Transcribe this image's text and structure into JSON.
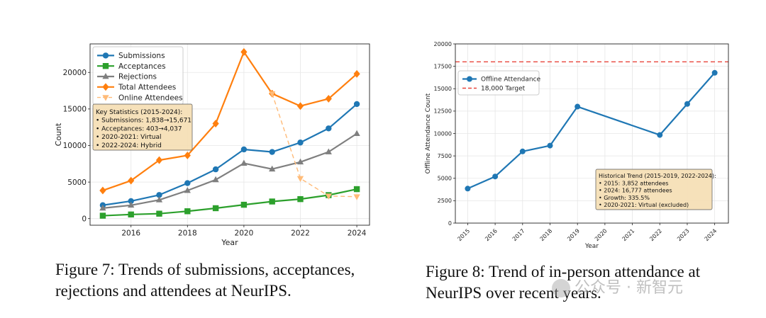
{
  "chart_data": [
    {
      "type": "line",
      "xlabel": "Year",
      "ylabel": "Count",
      "x": [
        2015,
        2016,
        2017,
        2018,
        2019,
        2020,
        2021,
        2022,
        2023,
        2024
      ],
      "xticks": [
        2016,
        2018,
        2020,
        2022,
        2024
      ],
      "yticks": [
        0,
        5000,
        10000,
        15000,
        20000
      ],
      "xlim": [
        2014.55,
        2024.45
      ],
      "ylim": [
        -900,
        23900
      ],
      "grid": true,
      "legend_position": "upper-left",
      "series": [
        {
          "name": "Submissions",
          "color": "#1f77b4",
          "marker": "circle",
          "style": "solid",
          "values": [
            1838,
            2400,
            3240,
            4856,
            6743,
            9467,
            9122,
            10411,
            12345,
            15671
          ]
        },
        {
          "name": "Acceptances",
          "color": "#2ca02c",
          "marker": "square",
          "style": "solid",
          "values": [
            403,
            569,
            679,
            1011,
            1428,
            1900,
            2344,
            2671,
            3218,
            4037
          ]
        },
        {
          "name": "Rejections",
          "color": "#7f7f7f",
          "marker": "triangle",
          "style": "solid",
          "values": [
            1435,
            1831,
            2561,
            3845,
            5315,
            7567,
            6778,
            7740,
            9127,
            11634
          ]
        },
        {
          "name": "Total Attendees",
          "color": "#ff7f0e",
          "marker": "diamond",
          "style": "solid",
          "values": [
            3852,
            5200,
            8000,
            8648,
            13000,
            22800,
            17100,
            15400,
            16400,
            19800
          ]
        },
        {
          "name": "Online Attendees",
          "color": "#ffbb78",
          "marker": "triangle-down",
          "style": "dashed",
          "values": [
            null,
            null,
            null,
            null,
            null,
            null,
            17100,
            5500,
            3100,
            3000
          ]
        }
      ],
      "stats_box": {
        "lines": [
          "Key Statistics (2015-2024):",
          "• Submissions: 1,838→15,671",
          "• Acceptances: 403→4,037",
          "• 2020-2021: Virtual",
          "• 2022-2024: Hybrid"
        ]
      },
      "caption": "Figure 7: Trends of submissions, acceptances, rejections and attendees at NeurIPS."
    },
    {
      "type": "line",
      "xlabel": "Year",
      "ylabel": "Offline Attendance Count",
      "x": [
        2015,
        2016,
        2017,
        2018,
        2019,
        2020,
        2021,
        2022,
        2023,
        2024
      ],
      "xticks": [
        2015,
        2016,
        2017,
        2018,
        2019,
        2020,
        2021,
        2022,
        2023,
        2024
      ],
      "yticks": [
        0,
        2500,
        5000,
        7500,
        10000,
        12500,
        15000,
        17500,
        20000
      ],
      "xlim": [
        2014.55,
        2024.5
      ],
      "ylim": [
        0,
        20000
      ],
      "grid": true,
      "legend_position": "upper-left",
      "series": [
        {
          "name": "Offline Attendance",
          "color": "#1f77b4",
          "marker": "circle",
          "style": "solid",
          "values": [
            3852,
            5200,
            8000,
            8648,
            13000,
            null,
            null,
            9835,
            13300,
            16777
          ]
        }
      ],
      "target_line": {
        "name": "18,000 Target",
        "value": 18000,
        "color": "#e8453c",
        "style": "dashed"
      },
      "stats_box": {
        "lines": [
          "Historical Trend (2015-2019, 2022-2024):",
          "• 2015: 3,852 attendees",
          "• 2024: 16,777 attendees",
          "• Growth: 335.5%",
          "• 2020-2021: Virtual (excluded)"
        ]
      },
      "caption": "Figure 8: Trend of in-person attendance at NeurIPS over recent years."
    }
  ],
  "captions": {
    "fig7_line1": "Figure 7: Trends of submissions, acceptances,",
    "fig7_line2": "rejections and attendees at NeurIPS.",
    "fig8_line1": "Figure 8: Trend of in-person attendance at",
    "fig8_line2": "NeurIPS over recent years."
  },
  "watermark": {
    "text": "公众号 · 新智元",
    "icon": "wechat-icon"
  }
}
